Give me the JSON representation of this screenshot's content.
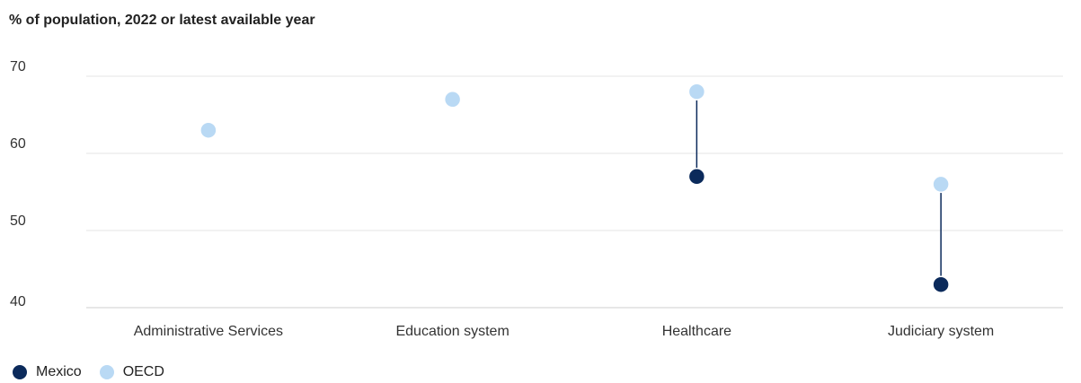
{
  "chart_data": {
    "type": "dot",
    "title": "% of population, 2022 or latest available year",
    "categories": [
      "Administrative Services",
      "Education system",
      "Healthcare",
      "Judiciary system"
    ],
    "series": [
      {
        "name": "Mexico",
        "color": "#0b2a5b",
        "values": [
          null,
          67,
          57,
          43
        ]
      },
      {
        "name": "OECD",
        "color": "#b9d9f4",
        "values": [
          63,
          67,
          68,
          56
        ]
      }
    ],
    "y_ticks": [
      40,
      50,
      60,
      70
    ],
    "ylim": [
      40,
      73
    ],
    "grid": true,
    "legend_position": "bottom-left"
  }
}
